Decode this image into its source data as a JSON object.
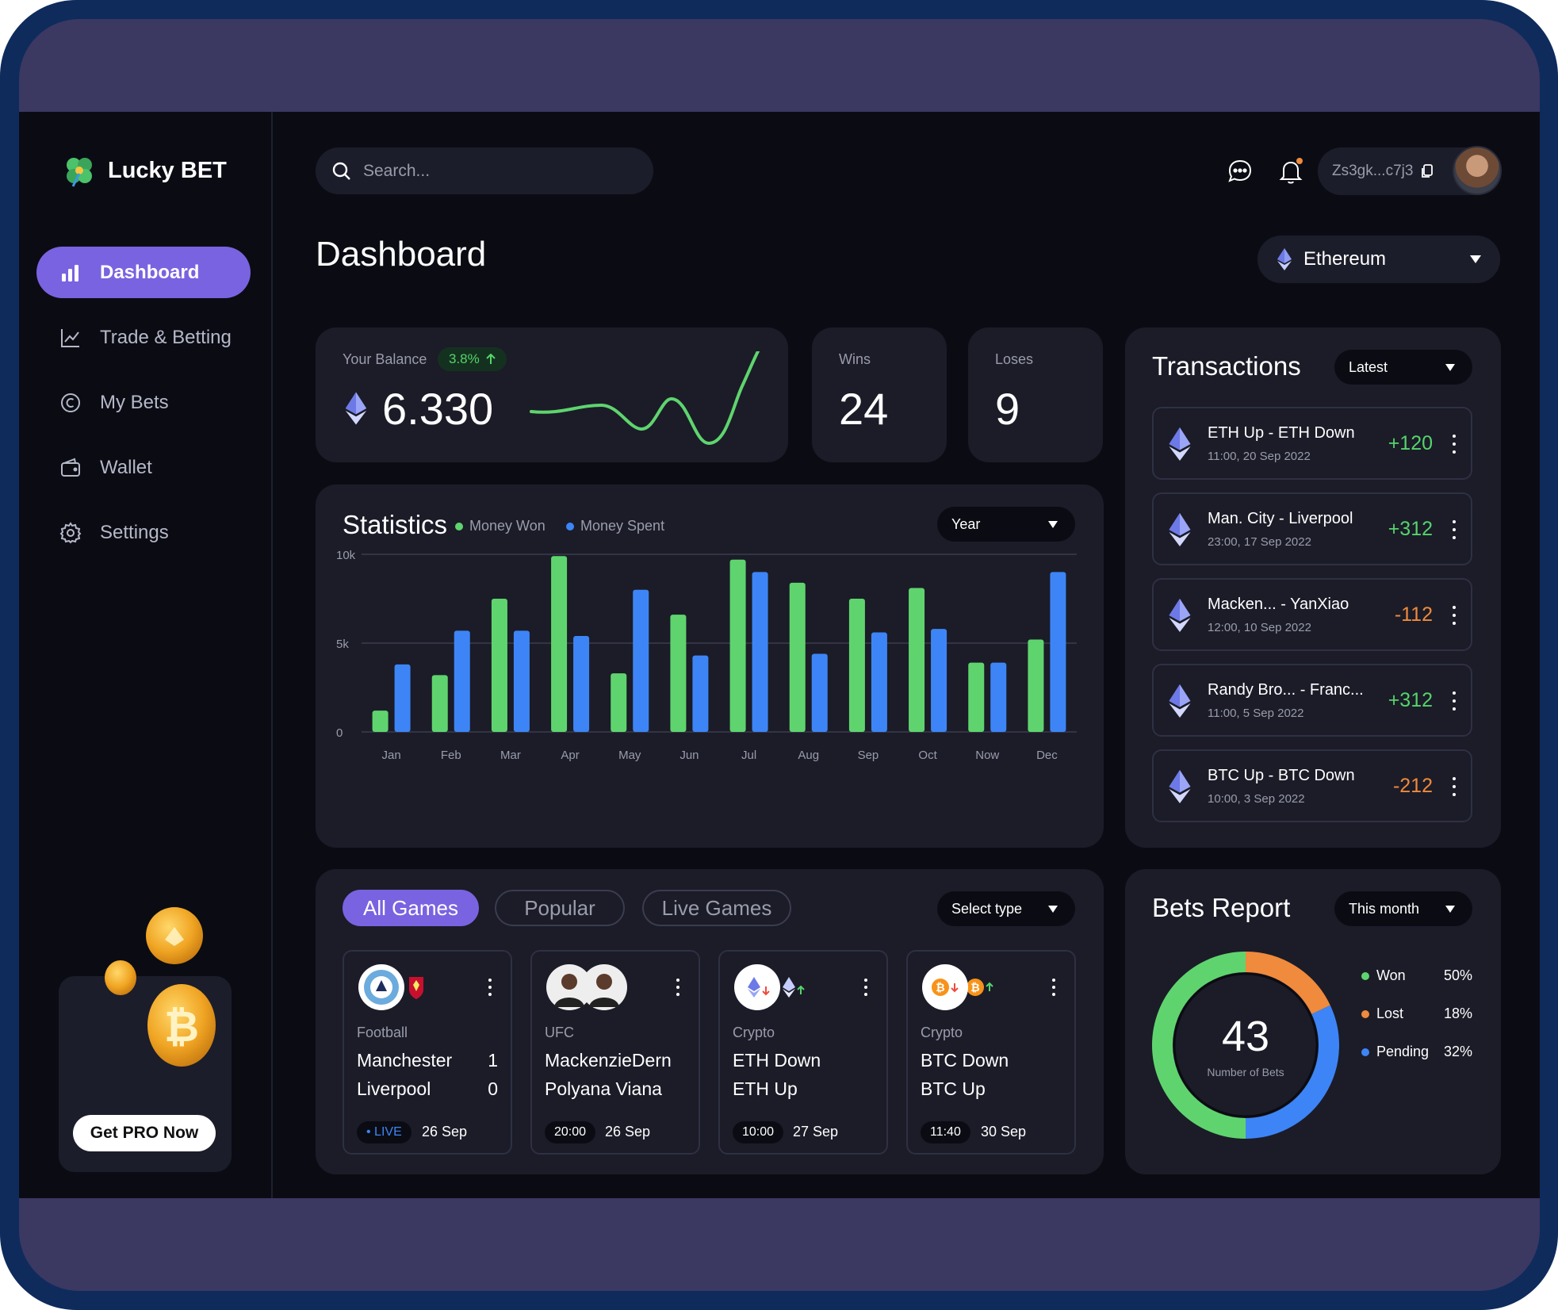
{
  "brand": {
    "name": "Lucky BET"
  },
  "nav": [
    {
      "label": "Dashboard",
      "icon": "bar-chart-icon"
    },
    {
      "label": "Trade & Betting",
      "icon": "line-chart-icon"
    },
    {
      "label": "My Bets",
      "icon": "coin-icon"
    },
    {
      "label": "Wallet",
      "icon": "wallet-icon"
    },
    {
      "label": "Settings",
      "icon": "gear-icon"
    }
  ],
  "promo": {
    "button_label": "Get PRO Now"
  },
  "search": {
    "placeholder": "Search..."
  },
  "header": {
    "wallet_address": "Zs3gk...c7j3"
  },
  "page": {
    "title": "Dashboard",
    "currency": "Ethereum"
  },
  "balance": {
    "label": "Your Balance",
    "growth": "3.8%",
    "value": "6.330"
  },
  "wins": {
    "label": "Wins",
    "value": "24"
  },
  "loses": {
    "label": "Loses",
    "value": "9"
  },
  "statistics": {
    "title": "Statistics",
    "period": "Year"
  },
  "chart_data": {
    "type": "bar",
    "categories": [
      "Jan",
      "Feb",
      "Mar",
      "Apr",
      "May",
      "Jun",
      "Jul",
      "Aug",
      "Sep",
      "Oct",
      "Now",
      "Dec"
    ],
    "series": [
      {
        "name": "Money Won",
        "color": "#5fd46e",
        "values": [
          1200,
          3200,
          7500,
          9900,
          3300,
          6600,
          9700,
          8400,
          7500,
          8100,
          3900,
          5200
        ]
      },
      {
        "name": "Money Spent",
        "color": "#3d85f6",
        "values": [
          3800,
          5700,
          5700,
          5400,
          8000,
          4300,
          9000,
          4400,
          5600,
          5800,
          3900,
          9000
        ]
      }
    ],
    "yticks": [
      "0",
      "5k",
      "10k"
    ],
    "ylim": [
      0,
      10000
    ],
    "grid": true,
    "legend": "top"
  },
  "transactions": {
    "title": "Transactions",
    "filter": "Latest",
    "items": [
      {
        "name": "ETH Up - ETH Down",
        "time": "11:00, 20 Sep 2022",
        "amount": "+120",
        "positive": true
      },
      {
        "name": "Man. City - Liverpool",
        "time": "23:00, 17 Sep 2022",
        "amount": "+312",
        "positive": true
      },
      {
        "name": "Macken... - YanXiao",
        "time": "12:00, 10 Sep 2022",
        "amount": "-112",
        "positive": false
      },
      {
        "name": "Randy Bro... - Franc...",
        "time": "11:00, 5 Sep 2022",
        "amount": "+312",
        "positive": true
      },
      {
        "name": "BTC Up - BTC Down",
        "time": "10:00, 3 Sep 2022",
        "amount": "-212",
        "positive": false
      }
    ]
  },
  "games": {
    "tabs": [
      "All Games",
      "Popular",
      "Live Games"
    ],
    "select": "Select type",
    "cards": [
      {
        "category": "Football",
        "team1": "Manchester",
        "team2": "Liverpool",
        "score1": "1",
        "score2": "0",
        "badge": "• LIVE",
        "date": "26 Sep",
        "icons": [
          "man-city-logo-icon",
          "liverpool-logo-icon"
        ]
      },
      {
        "category": "UFC",
        "team1": "MackenzieDern",
        "team2": "Polyana Viana",
        "score1": "",
        "score2": "",
        "badge": "20:00",
        "date": "26 Sep",
        "icons": [
          "fighter-avatar-icon",
          "fighter-avatar-icon"
        ]
      },
      {
        "category": "Crypto",
        "team1": "ETH Down",
        "team2": "ETH Up",
        "score1": "",
        "score2": "",
        "badge": "10:00",
        "date": "27 Sep",
        "icons": [
          "eth-down-icon",
          "eth-up-icon"
        ]
      },
      {
        "category": "Crypto",
        "team1": "BTC Down",
        "team2": "BTC Up",
        "score1": "",
        "score2": "",
        "badge": "11:40",
        "date": "30 Sep",
        "icons": [
          "btc-down-icon",
          "btc-up-icon"
        ]
      }
    ]
  },
  "bets_report": {
    "title": "Bets Report",
    "period": "This month",
    "total": "43",
    "total_label": "Number of Bets",
    "segments": [
      {
        "name": "Won",
        "pct": "50%",
        "value": 50,
        "color": "#5fd46e"
      },
      {
        "name": "Lost",
        "pct": "18%",
        "value": 18,
        "color": "#f08a3c"
      },
      {
        "name": "Pending",
        "pct": "32%",
        "value": 32,
        "color": "#3d85f6"
      }
    ]
  },
  "colors": {
    "accent": "#7a63e0",
    "green": "#5fd46e",
    "blue": "#3d85f6",
    "orange": "#f08a3c"
  }
}
